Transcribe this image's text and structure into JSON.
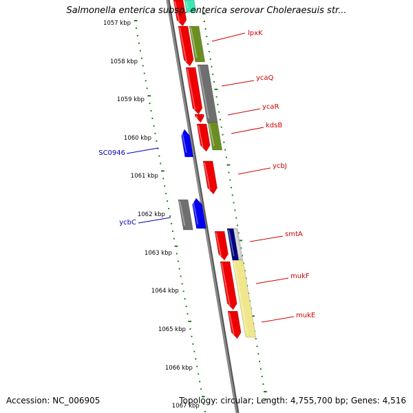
{
  "title": "Salmonella enterica subsp. enterica serovar Choleraesuis str...",
  "accession": "Accession: NC_006905",
  "topology": "Topology: circular; Length: 4,755,700 bp; Genes: 4,516",
  "colors": {
    "backbone": "#8a8a8a",
    "tick": "#1e7a1e",
    "label_plus": "#cc0000",
    "label_minus": "#0000aa",
    "red": "#ee0000",
    "blue": "#0000ee",
    "olive": "#6b8e23",
    "gray": "#6f6f6f",
    "teal": "#3ee6b4",
    "navy": "#000080",
    "yellow": "#f0e68c"
  },
  "scale": {
    "unit": "kbp",
    "labels": [
      "1057 kbp",
      "1058 kbp",
      "1059 kbp",
      "1060 kbp",
      "1061 kbp",
      "1062 kbp",
      "1063 kbp",
      "1064 kbp",
      "1065 kbp",
      "1066 kbp",
      "1067 kbp"
    ]
  },
  "genes": [
    {
      "name": "lpxK",
      "color_key": "label_plus"
    },
    {
      "name": "ycaQ",
      "color_key": "label_plus"
    },
    {
      "name": "ycaR",
      "color_key": "label_plus"
    },
    {
      "name": "kdsB",
      "color_key": "label_plus"
    },
    {
      "name": "ycbJ",
      "color_key": "label_plus"
    },
    {
      "name": "smtA",
      "color_key": "label_plus"
    },
    {
      "name": "mukF",
      "color_key": "label_plus"
    },
    {
      "name": "mukE",
      "color_key": "label_plus"
    },
    {
      "name": "SC0946",
      "color_key": "label_minus"
    },
    {
      "name": "ycbC",
      "color_key": "label_minus"
    }
  ]
}
